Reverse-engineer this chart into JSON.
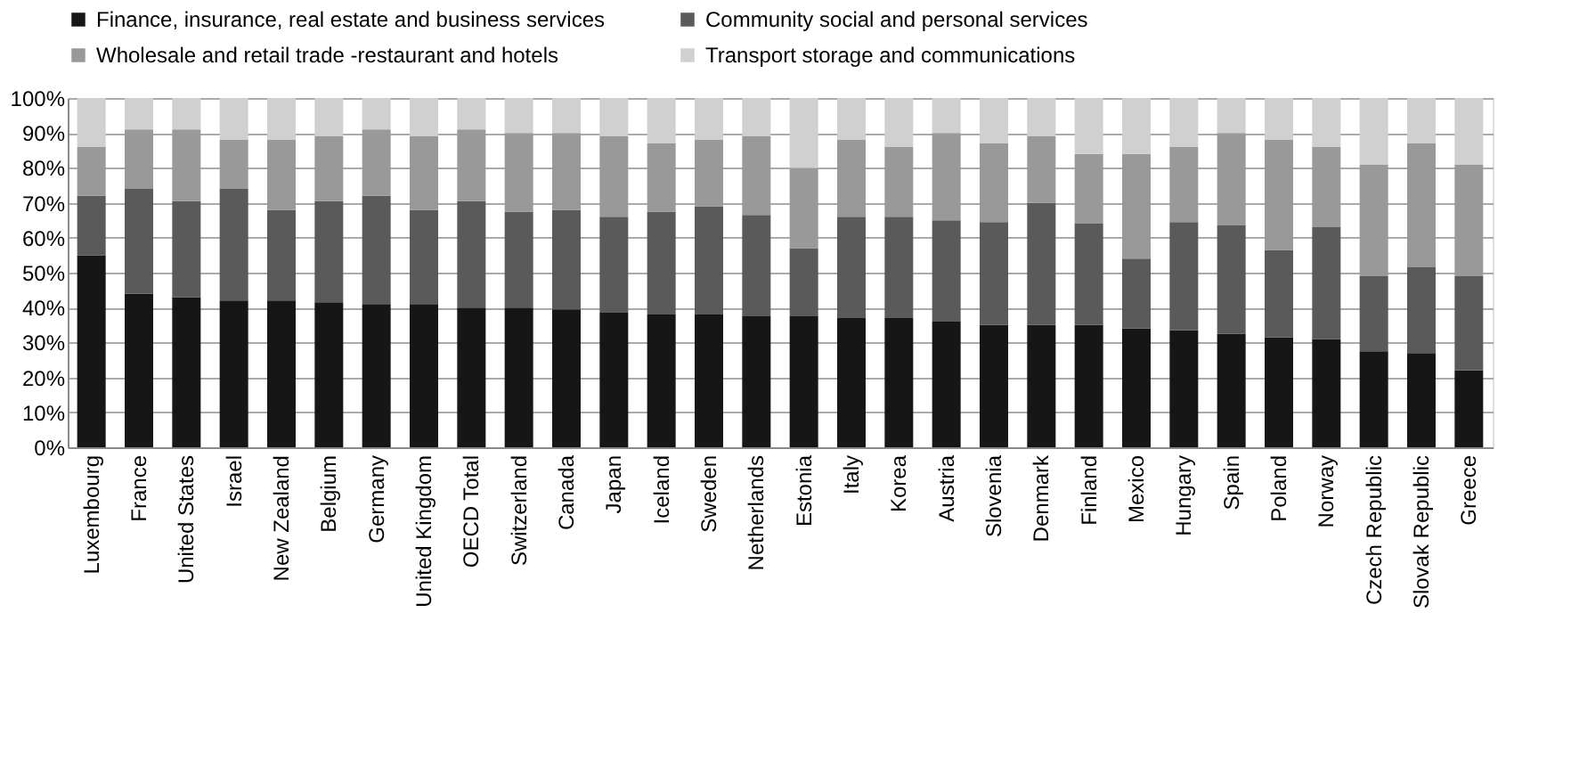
{
  "chart_data": {
    "type": "bar",
    "stacked": true,
    "categories": [
      "Luxembourg",
      "France",
      "United States",
      "Israel",
      "New Zealand",
      "Belgium",
      "Germany",
      "United Kingdom",
      "OECD Total",
      "Switzerland",
      "Canada",
      "Japan",
      "Iceland",
      "Sweden",
      "Netherlands",
      "Estonia",
      "Italy",
      "Korea",
      "Austria",
      "Slovenia",
      "Denmark",
      "Finland",
      "Mexico",
      "Hungary",
      "Spain",
      "Poland",
      "Norway",
      "Czech Republic",
      "Slovak Republic",
      "Greece"
    ],
    "series": [
      {
        "name": "Finance, insurance, real estate and business services",
        "color": "#161616",
        "values": [
          55,
          44,
          43,
          42,
          42,
          41.5,
          41,
          41,
          40,
          40,
          39.5,
          38.5,
          38,
          38,
          37.5,
          37.5,
          37,
          37,
          36,
          35,
          35,
          35,
          34,
          33.5,
          32.5,
          31.5,
          31,
          27.5,
          27,
          22
        ]
      },
      {
        "name": "Community social and personal services",
        "color": "#5a5a5a",
        "values": [
          17,
          30,
          27.5,
          32,
          26,
          29,
          31,
          27,
          30.5,
          27.5,
          28.5,
          27.5,
          29.5,
          31,
          29,
          19.5,
          29,
          29,
          29,
          29.5,
          35,
          29,
          20,
          31,
          31,
          25,
          32,
          21.5,
          24.5,
          27
        ]
      },
      {
        "name": "Wholesale and retail trade -restaurant and hotels",
        "color": "#999999",
        "values": [
          14,
          17,
          20.5,
          14,
          20,
          18.5,
          19,
          21,
          20.5,
          22.5,
          22,
          23,
          19.5,
          19,
          22.5,
          23,
          22,
          20,
          25,
          22.5,
          19,
          20,
          30,
          21.5,
          26.5,
          31.5,
          23,
          32,
          35.5,
          32
        ]
      },
      {
        "name": "Transport storage and communications",
        "color": "#d0d0d0",
        "values": [
          14,
          9,
          9,
          12,
          12,
          11,
          9,
          11,
          9,
          10,
          10,
          11,
          13,
          12,
          11,
          20,
          12,
          14,
          10,
          13,
          11,
          16,
          16,
          14,
          10,
          12,
          14,
          19,
          13,
          19
        ]
      }
    ],
    "ylim": [
      0,
      100
    ],
    "yticks": [
      {
        "value": 0,
        "label": "0%"
      },
      {
        "value": 10,
        "label": "10%"
      },
      {
        "value": 20,
        "label": "20%"
      },
      {
        "value": 30,
        "label": "30%"
      },
      {
        "value": 40,
        "label": "40%"
      },
      {
        "value": 50,
        "label": "50%"
      },
      {
        "value": 60,
        "label": "60%"
      },
      {
        "value": 70,
        "label": "70%"
      },
      {
        "value": 80,
        "label": "80%"
      },
      {
        "value": 90,
        "label": "90%"
      },
      {
        "value": 100,
        "label": "100%"
      }
    ],
    "grid": "y",
    "legend": "top"
  }
}
